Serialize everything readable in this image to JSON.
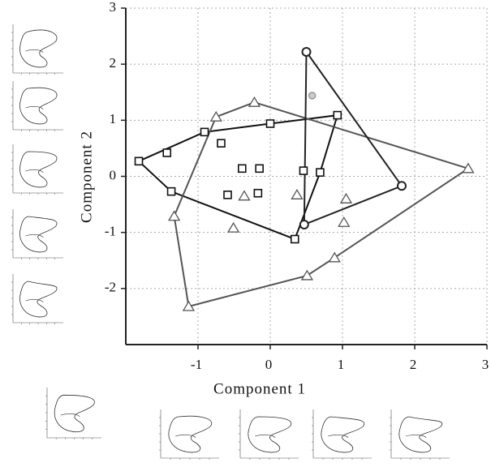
{
  "chart_data": {
    "type": "scatter",
    "xlabel": "Component 1",
    "ylabel": "Component 2",
    "xlim": [
      -2,
      3
    ],
    "ylim": [
      -3,
      3
    ],
    "xticks": [
      -1,
      0,
      1,
      2,
      3
    ],
    "yticks": [
      -2,
      -1,
      0,
      1,
      2,
      3
    ],
    "grid": true,
    "series": [
      {
        "marker": "square",
        "color": "#111",
        "hull": true,
        "x": [
          -1.82,
          -1.43,
          -1.37,
          -0.91,
          -0.68,
          -0.39,
          -0.15,
          -0.59,
          -0.17,
          0.0,
          0.46,
          0.69,
          0.93,
          0.34
        ],
        "y": [
          0.27,
          0.42,
          -0.27,
          0.79,
          0.59,
          0.14,
          0.14,
          -0.33,
          -0.3,
          0.94,
          0.1,
          0.07,
          1.09,
          -1.12
        ]
      },
      {
        "marker": "triangle",
        "color": "#555",
        "hull": true,
        "x": [
          -0.75,
          -0.22,
          -1.33,
          -1.13,
          -0.51,
          -0.36,
          0.37,
          1.05,
          1.02,
          0.89,
          0.51,
          2.74
        ],
        "y": [
          1.06,
          1.32,
          -0.71,
          -2.32,
          -0.92,
          -0.35,
          -0.33,
          -0.4,
          -0.82,
          -1.45,
          -1.77,
          0.14
        ]
      },
      {
        "marker": "circle",
        "color": "#222",
        "hull": true,
        "x": [
          0.5,
          1.82,
          0.47
        ],
        "y": [
          2.22,
          -0.17,
          -0.86
        ]
      },
      {
        "marker": "circle",
        "color": "#999",
        "hull": false,
        "x": [
          0.58
        ],
        "y": [
          1.44
        ]
      }
    ]
  }
}
